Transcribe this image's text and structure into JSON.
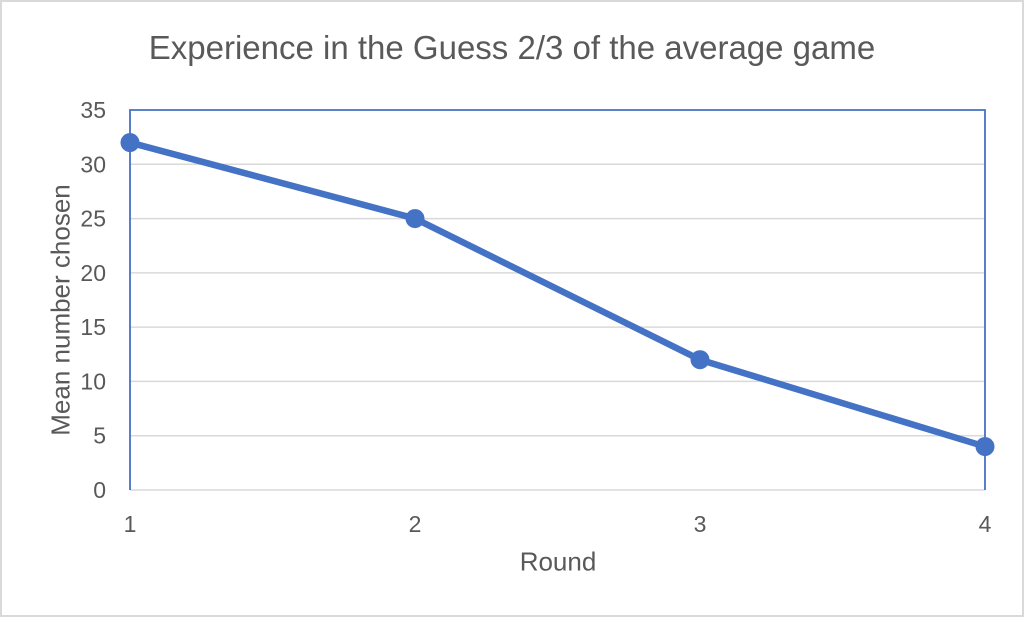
{
  "window": {
    "background": "#ffffff",
    "frame_border_color": "#d9d9d9"
  },
  "chart_data": {
    "type": "line",
    "title": "Experience in the Guess 2/3 of the average game",
    "xlabel": "Round",
    "ylabel": "Mean number chosen",
    "categories": [
      "1",
      "2",
      "3",
      "4"
    ],
    "series": [
      {
        "name": "Mean number chosen",
        "values": [
          32,
          25,
          12,
          4
        ]
      }
    ],
    "ylim": [
      0,
      35
    ],
    "yticks": [
      0,
      5,
      10,
      15,
      20,
      25,
      30,
      35
    ],
    "grid": "horizontal",
    "legend": "none",
    "marker": "circle",
    "colors": {
      "line": "#4472C4",
      "marker": "#4472C4",
      "plot_border": "#4472C4",
      "gridline": "#D9D9D9",
      "axis_line": "#D9D9D9",
      "text": "#595959"
    }
  }
}
